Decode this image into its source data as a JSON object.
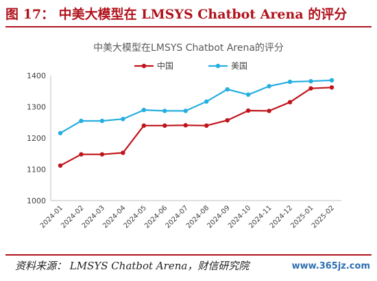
{
  "figure": {
    "title": "图 17：  中美大模型在 LMSYS Chatbot Arena 的评分",
    "source": "资料来源：  LMSYS Chatbot Arena，财信研究院",
    "watermark": "www.365jz.com"
  },
  "chart_data": {
    "type": "line",
    "title": "中美大模型在LMSYS Chatbot Arena的评分",
    "xlabel": "",
    "ylabel": "",
    "categories": [
      "2024-01",
      "2024-02",
      "2024-03",
      "2024-04",
      "2024-05",
      "2024-06",
      "2024-07",
      "2024-08",
      "2024-09",
      "2024-10",
      "2024-11",
      "2024-12",
      "2025-01",
      "2025-02"
    ],
    "yticks": [
      "1000",
      "1100",
      "1200",
      "1300",
      "1400"
    ],
    "ylim": [
      1000,
      1400
    ],
    "grid": false,
    "legend_position": "top-center",
    "series": [
      {
        "name": "中国",
        "color": "#c0141b",
        "values": [
          1112,
          1148,
          1148,
          1153,
          1240,
          1240,
          1241,
          1240,
          1257,
          1288,
          1287,
          1315,
          1359,
          1362
        ]
      },
      {
        "name": "美国",
        "color": "#25aee0",
        "values": [
          1216,
          1255,
          1255,
          1261,
          1290,
          1287,
          1287,
          1317,
          1356,
          1339,
          1366,
          1380,
          1382,
          1385
        ]
      }
    ]
  }
}
